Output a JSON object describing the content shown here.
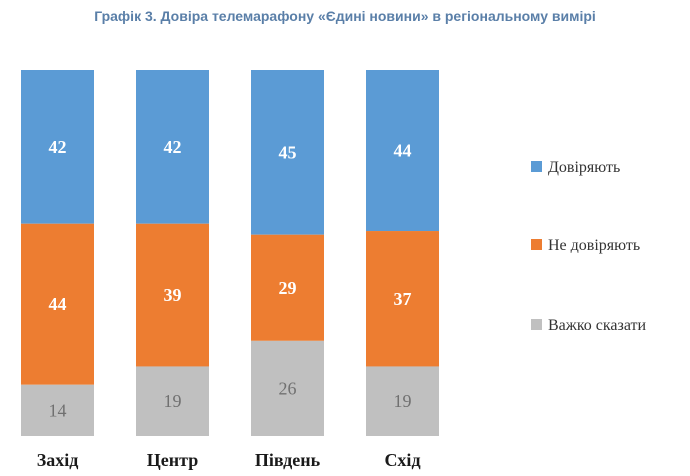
{
  "chart_data": {
    "type": "bar",
    "stacked": true,
    "title": "Графік 3. Довіра телемарафону «Єдині новини» в регіональному вимірі",
    "categories": [
      "Захід",
      "Центр",
      "Південь",
      "Схід"
    ],
    "series": [
      {
        "name": "Довіряють",
        "values": [
          42,
          42,
          45,
          44
        ],
        "color": "#5b9bd5"
      },
      {
        "name": "Не довіряють",
        "values": [
          44,
          39,
          29,
          37
        ],
        "color": "#ed7d31"
      },
      {
        "name": "Важко сказати",
        "values": [
          14,
          19,
          26,
          19
        ],
        "color": "#c0c0c0"
      }
    ],
    "ylim": [
      0,
      100
    ],
    "xlabel": "",
    "ylabel": "",
    "grid": false,
    "legend": "right"
  }
}
